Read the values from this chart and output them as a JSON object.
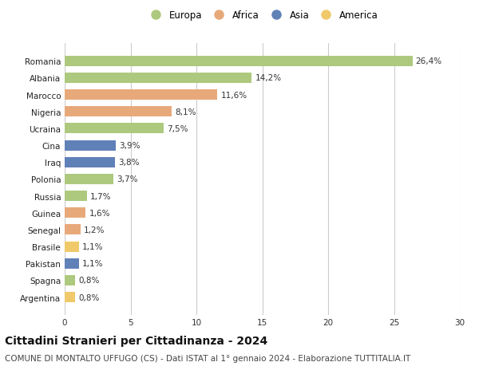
{
  "countries": [
    "Romania",
    "Albania",
    "Marocco",
    "Nigeria",
    "Ucraina",
    "Cina",
    "Iraq",
    "Polonia",
    "Russia",
    "Guinea",
    "Senegal",
    "Brasile",
    "Pakistan",
    "Spagna",
    "Argentina"
  ],
  "values": [
    26.4,
    14.2,
    11.6,
    8.1,
    7.5,
    3.9,
    3.8,
    3.7,
    1.7,
    1.6,
    1.2,
    1.1,
    1.1,
    0.8,
    0.8
  ],
  "labels": [
    "26,4%",
    "14,2%",
    "11,6%",
    "8,1%",
    "7,5%",
    "3,9%",
    "3,8%",
    "3,7%",
    "1,7%",
    "1,6%",
    "1,2%",
    "1,1%",
    "1,1%",
    "0,8%",
    "0,8%"
  ],
  "continents": [
    "Europa",
    "Europa",
    "Africa",
    "Africa",
    "Europa",
    "Asia",
    "Asia",
    "Europa",
    "Europa",
    "Africa",
    "Africa",
    "America",
    "Asia",
    "Europa",
    "America"
  ],
  "colors": {
    "Europa": "#adc97e",
    "Africa": "#e8a97a",
    "Asia": "#6080b8",
    "America": "#f0c96a"
  },
  "legend_order": [
    "Europa",
    "Africa",
    "Asia",
    "America"
  ],
  "xlim": [
    0,
    30
  ],
  "xticks": [
    0,
    5,
    10,
    15,
    20,
    25,
    30
  ],
  "title": "Cittadini Stranieri per Cittadinanza - 2024",
  "subtitle": "COMUNE DI MONTALTO UFFUGO (CS) - Dati ISTAT al 1° gennaio 2024 - Elaborazione TUTTITALIA.IT",
  "background_color": "#ffffff",
  "grid_color": "#cccccc",
  "title_fontsize": 10,
  "subtitle_fontsize": 7.5,
  "label_fontsize": 7.5,
  "tick_fontsize": 7.5,
  "legend_fontsize": 8.5
}
